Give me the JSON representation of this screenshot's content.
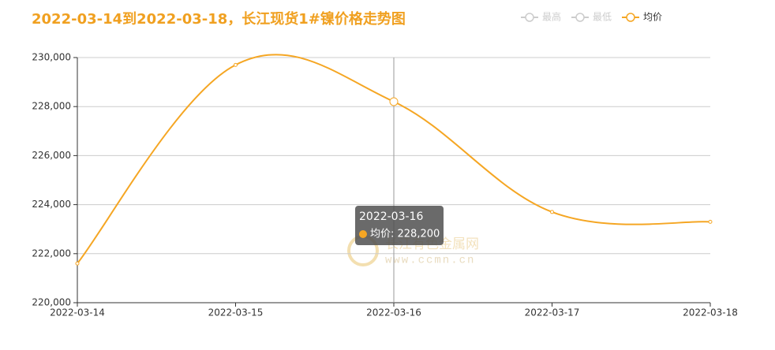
{
  "chart_data": {
    "type": "line",
    "title": "2022-03-14到2022-03-18，长江现货1#镍价格走势图",
    "categories": [
      "2022-03-14",
      "2022-03-15",
      "2022-03-16",
      "2022-03-17",
      "2022-03-18"
    ],
    "series": [
      {
        "name": "最高",
        "color": "#cccccc",
        "hidden": true,
        "values": [
          null,
          null,
          null,
          null,
          null
        ]
      },
      {
        "name": "最低",
        "color": "#cccccc",
        "hidden": true,
        "values": [
          null,
          null,
          null,
          null,
          null
        ]
      },
      {
        "name": "均价",
        "color": "#f5a623",
        "hidden": false,
        "values": [
          221600,
          229700,
          228200,
          223700,
          223300
        ]
      }
    ],
    "ylim": [
      220000,
      230000
    ],
    "yticks": [
      {
        "value": 220000,
        "label": "220,000"
      },
      {
        "value": 222000,
        "label": "222,000"
      },
      {
        "value": 224000,
        "label": "224,000"
      },
      {
        "value": 226000,
        "label": "226,000"
      },
      {
        "value": 228000,
        "label": "228,000"
      },
      {
        "value": 230000,
        "label": "230,000"
      }
    ],
    "grid": true,
    "tooltip": {
      "title": "2022-03-16",
      "label": "均价: 228,200"
    },
    "watermark": [
      "长江有色金属网",
      "www.ccmn.cn"
    ]
  }
}
